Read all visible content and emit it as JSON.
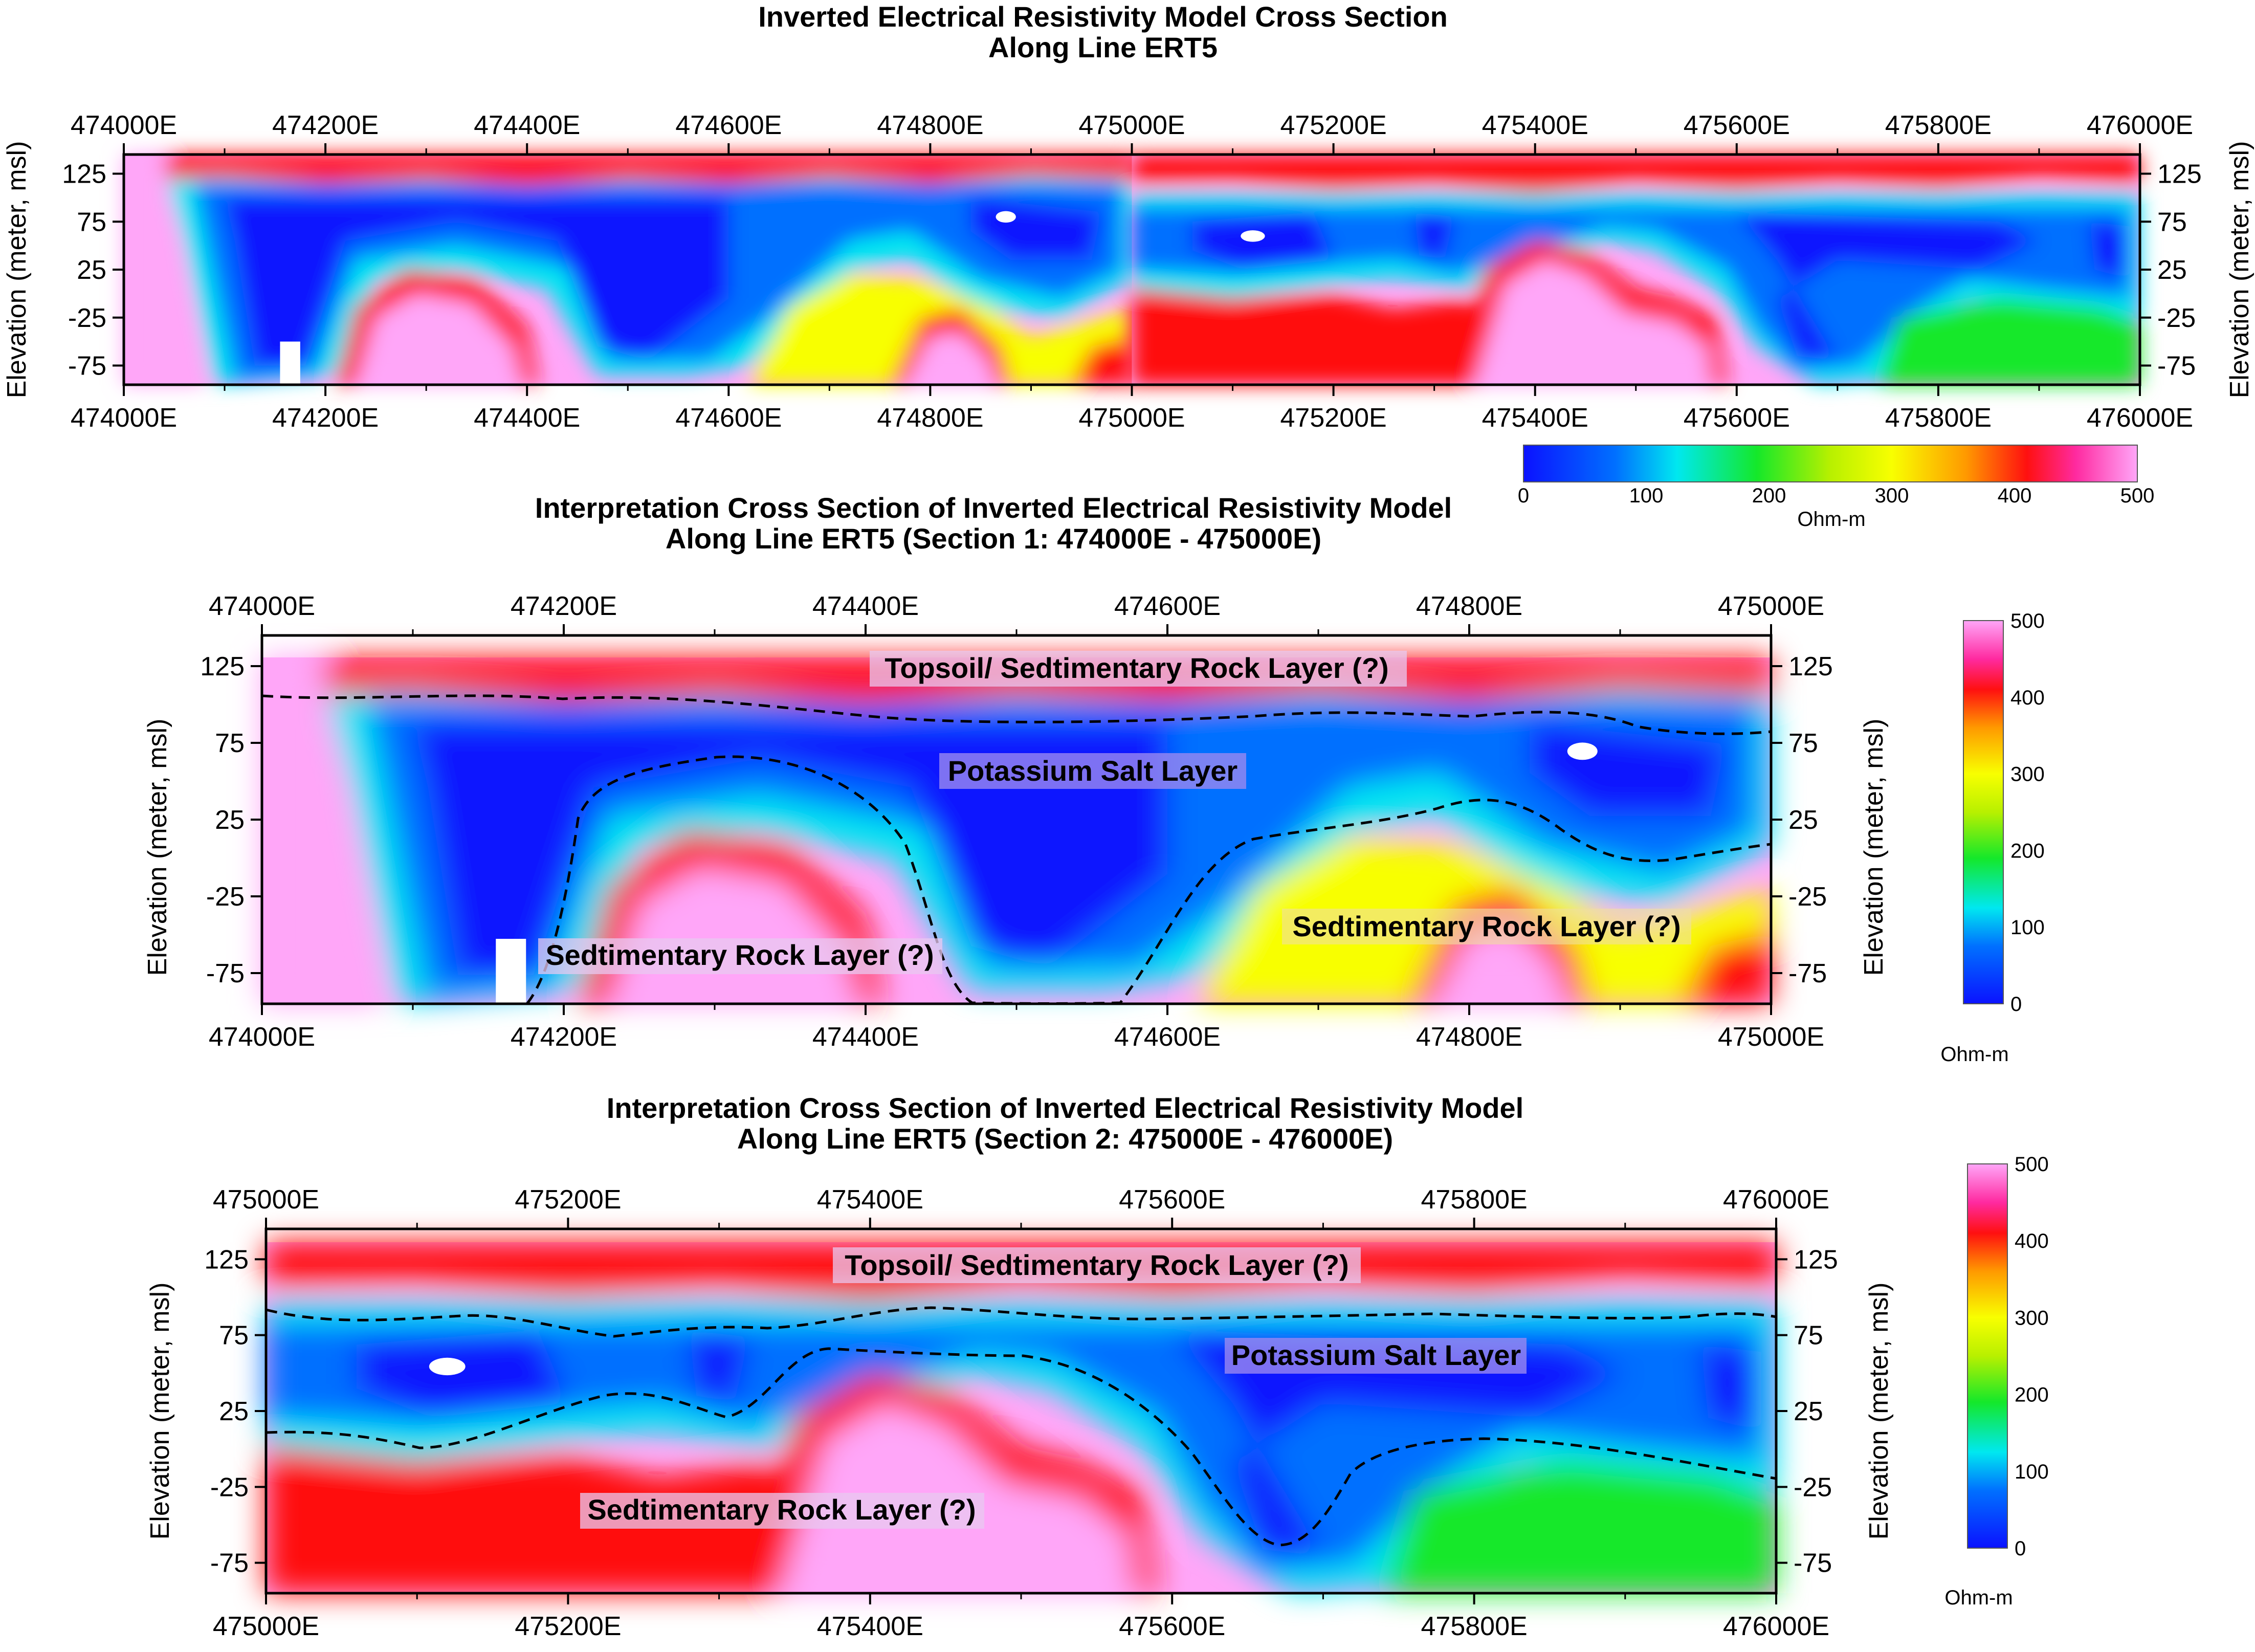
{
  "colors": {
    "low": "#0b12ff",
    "mid_low": "#00e8f0",
    "mid": "#14e82a",
    "mid_high": "#f8ff00",
    "high": "#ff1010",
    "top": "#ffa6f8",
    "label_box": "#e8c8f0"
  },
  "chart_data": [
    {
      "type": "heatmap",
      "title": "Inverted Electrical Resistivity Model Cross Section",
      "subtitle": "Along Line ERT5",
      "ylabel": "Elevation (meter, msl)",
      "x_ticks": [
        "474000E",
        "474200E",
        "474400E",
        "474600E",
        "474800E",
        "475000E",
        "475200E",
        "475400E",
        "475600E",
        "475800E",
        "476000E"
      ],
      "y_ticks": [
        "125",
        "75",
        "25",
        "-25",
        "-75"
      ],
      "xlim": [
        474000,
        476000
      ],
      "ylim": [
        -95,
        145
      ],
      "colorbar": {
        "ticks": [
          "0",
          "100",
          "200",
          "300",
          "400",
          "500"
        ],
        "unit": "Ohm-m",
        "range": [
          0,
          500
        ]
      }
    },
    {
      "type": "heatmap",
      "title": "Interpretation Cross Section of Inverted Electrical Resistivity Model",
      "subtitle": "Along Line ERT5 (Section 1: 474000E - 475000E)",
      "ylabel": "Elevation (meter, msl)",
      "x_ticks": [
        "474000E",
        "474200E",
        "474400E",
        "474600E",
        "474800E",
        "475000E"
      ],
      "y_ticks": [
        "125",
        "75",
        "25",
        "-25",
        "-75"
      ],
      "xlim": [
        474000,
        475000
      ],
      "ylim": [
        -95,
        145
      ],
      "annotations": [
        "Topsoil/ Sedtimentary Rock Layer (?)",
        "Potassium Salt Layer",
        "Sedtimentary Rock Layer (?)",
        "Sedtimentary Rock Layer (?)"
      ],
      "colorbar": {
        "ticks": [
          "500",
          "400",
          "300",
          "200",
          "100",
          "0"
        ],
        "unit": "Ohm-m",
        "range": [
          0,
          500
        ]
      }
    },
    {
      "type": "heatmap",
      "title": "Interpretation Cross Section of Inverted Electrical Resistivity Model",
      "subtitle": "Along Line ERT5 (Section 2: 475000E - 476000E)",
      "ylabel": "Elevation (meter, msl)",
      "x_ticks": [
        "475000E",
        "475200E",
        "475400E",
        "475600E",
        "475800E",
        "476000E"
      ],
      "y_ticks": [
        "125",
        "75",
        "25",
        "-25",
        "-75"
      ],
      "xlim": [
        475000,
        476000
      ],
      "ylim": [
        -95,
        145
      ],
      "annotations": [
        "Topsoil/ Sedtimentary Rock Layer (?)",
        "Potassium Salt Layer",
        "Sedtimentary Rock Layer (?)"
      ],
      "colorbar": {
        "ticks": [
          "500",
          "400",
          "300",
          "200",
          "100",
          "0"
        ],
        "unit": "Ohm-m",
        "range": [
          0,
          500
        ]
      }
    }
  ]
}
